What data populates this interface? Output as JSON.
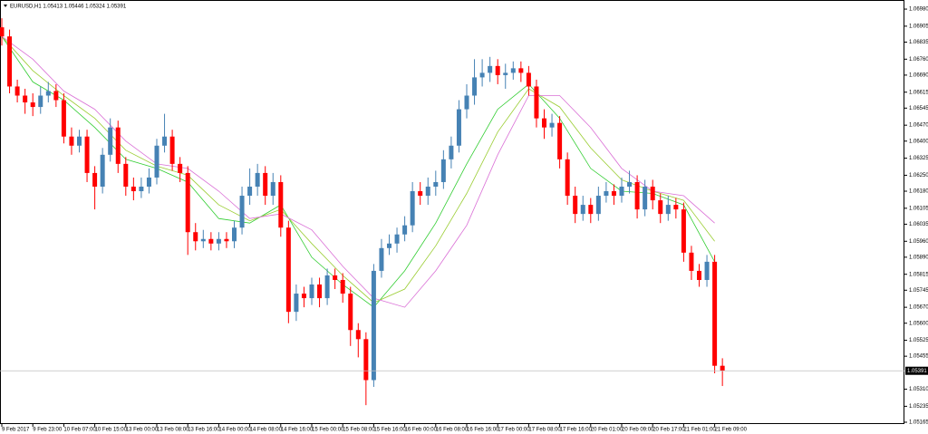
{
  "chart_data": {
    "type": "candlestick",
    "symbol": "EURUSD,H1",
    "categories": [
      "9 Feb 2017",
      null,
      null,
      null,
      "9 Feb 23:00",
      null,
      null,
      null,
      "10 Feb 07:00",
      null,
      null,
      null,
      "10 Feb 15:00",
      null,
      null,
      null,
      "13 Feb 00:00",
      null,
      null,
      null,
      "13 Feb 08:00",
      null,
      null,
      null,
      "13 Feb 16:00",
      null,
      null,
      null,
      "14 Feb 00:00",
      null,
      null,
      null,
      "14 Feb 08:00",
      null,
      null,
      null,
      "14 Feb 16:00",
      null,
      null,
      null,
      "15 Feb 00:00",
      null,
      null,
      null,
      "15 Feb 08:00",
      null,
      null,
      null,
      "15 Feb 16:00",
      null,
      null,
      null,
      "16 Feb 00:00",
      null,
      null,
      null,
      "16 Feb 08:00",
      null,
      null,
      null,
      "16 Feb 16:00",
      null,
      null,
      null,
      "17 Feb 00:00",
      null,
      null,
      null,
      "17 Feb 08:00",
      null,
      null,
      null,
      "17 Feb 16:00",
      null,
      null,
      null,
      "20 Feb 01:00",
      null,
      null,
      null,
      "20 Feb 09:00",
      null,
      null,
      null,
      "20 Feb 17:00",
      null,
      null,
      null,
      "21 Feb 01:00",
      null,
      null,
      null,
      "21 Feb 09:00",
      null
    ],
    "open": [
      1.069,
      1.0686,
      1.0664,
      1.066,
      1.0657,
      1.0655,
      1.066,
      1.0662,
      1.0658,
      1.0642,
      1.0638,
      1.0642,
      1.0626,
      1.062,
      1.0634,
      1.0646,
      1.063,
      1.062,
      1.0618,
      1.062,
      1.0624,
      1.0638,
      1.0642,
      1.063,
      1.0626,
      1.06,
      1.0596,
      1.0597,
      1.0595,
      1.0597,
      1.0596,
      1.0602,
      1.0616,
      1.062,
      1.0626,
      1.0616,
      1.0622,
      1.0602,
      1.0565,
      1.0573,
      1.0571,
      1.0577,
      1.0571,
      1.0581,
      1.0579,
      1.0573,
      1.0557,
      1.0553,
      1.0535,
      1.0583,
      1.0593,
      1.0595,
      1.0599,
      1.0603,
      1.0618,
      1.0616,
      1.062,
      1.0622,
      1.0632,
      1.0638,
      1.0654,
      1.066,
      1.0668,
      1.067,
      1.0673,
      1.0669,
      1.067,
      1.0672,
      1.067,
      1.0664,
      1.065,
      1.0646,
      1.0648,
      1.0632,
      1.0616,
      1.0608,
      1.0612,
      1.0608,
      1.0616,
      1.0618,
      1.0616,
      1.062,
      1.0622,
      1.061,
      1.062,
      1.0614,
      1.0608,
      1.0612,
      1.061,
      1.0591,
      1.0583,
      1.0579,
      1.0587,
      1.05413
    ],
    "high": [
      1.0694,
      1.0689,
      1.0667,
      1.0663,
      1.0661,
      1.0664,
      1.0666,
      1.0665,
      1.0661,
      1.0646,
      1.0645,
      1.0645,
      1.0629,
      1.0637,
      1.065,
      1.0649,
      1.0633,
      1.0624,
      1.0624,
      1.0628,
      1.0641,
      1.0652,
      1.0645,
      1.0633,
      1.0629,
      1.0604,
      1.0601,
      1.06,
      1.06,
      1.06,
      1.0605,
      1.062,
      1.0628,
      1.063,
      1.0629,
      1.0626,
      1.0625,
      1.0605,
      1.0577,
      1.0576,
      1.058,
      1.058,
      1.0584,
      1.0584,
      1.0582,
      1.0576,
      1.056,
      1.0556,
      1.0586,
      1.0597,
      1.0599,
      1.0602,
      1.0607,
      1.0622,
      1.0622,
      1.0624,
      1.0627,
      1.0636,
      1.0642,
      1.0658,
      1.0665,
      1.0676,
      1.0676,
      1.0677,
      1.0676,
      1.0674,
      1.0675,
      1.0675,
      1.0673,
      1.0667,
      1.0654,
      1.0652,
      1.0651,
      1.0635,
      1.062,
      1.0616,
      1.0615,
      1.062,
      1.0622,
      1.0621,
      1.0624,
      1.0627,
      1.0625,
      1.0623,
      1.0623,
      1.0617,
      1.0616,
      1.0615,
      1.0613,
      1.0594,
      1.0586,
      1.059,
      1.059,
      1.05446
    ],
    "low": [
      1.0682,
      1.0661,
      1.0657,
      1.0652,
      1.0651,
      1.0652,
      1.0657,
      1.0655,
      1.0639,
      1.0634,
      1.0635,
      1.0622,
      1.061,
      1.0617,
      1.0631,
      1.0626,
      1.0616,
      1.0614,
      1.0615,
      1.0617,
      1.0621,
      1.0635,
      1.0627,
      1.0622,
      1.059,
      1.0592,
      1.0593,
      1.0592,
      1.0592,
      1.0593,
      1.0593,
      1.0599,
      1.0612,
      1.0616,
      1.0612,
      1.0612,
      1.0598,
      1.056,
      1.0561,
      1.0567,
      1.0568,
      1.0567,
      1.0568,
      1.0575,
      1.0569,
      1.055,
      1.0545,
      1.0524,
      1.0532,
      1.058,
      1.059,
      1.0591,
      1.0596,
      1.06,
      1.0612,
      1.0612,
      1.0616,
      1.0619,
      1.0628,
      1.0635,
      1.065,
      1.0656,
      1.0664,
      1.0666,
      1.0665,
      1.0663,
      1.0667,
      1.0666,
      1.066,
      1.0646,
      1.0641,
      1.0642,
      1.0628,
      1.0612,
      1.0604,
      1.0605,
      1.0604,
      1.0605,
      1.0613,
      1.0612,
      1.0613,
      1.0617,
      1.0606,
      1.0607,
      1.061,
      1.0604,
      1.0605,
      1.0606,
      1.0587,
      1.0579,
      1.0576,
      1.0576,
      1.0538,
      1.05324
    ],
    "close": [
      1.0686,
      1.0664,
      1.066,
      1.0657,
      1.0655,
      1.066,
      1.0662,
      1.0658,
      1.0642,
      1.0638,
      1.0642,
      1.0626,
      1.062,
      1.0634,
      1.0646,
      1.063,
      1.062,
      1.0618,
      1.062,
      1.0624,
      1.0638,
      1.0642,
      1.063,
      1.0626,
      1.06,
      1.0596,
      1.0597,
      1.0595,
      1.0597,
      1.0596,
      1.0602,
      1.0616,
      1.062,
      1.0626,
      1.0616,
      1.0622,
      1.0602,
      1.0565,
      1.0573,
      1.0571,
      1.0577,
      1.0571,
      1.0581,
      1.0579,
      1.0573,
      1.0557,
      1.0553,
      1.0535,
      1.0583,
      1.0593,
      1.0595,
      1.0599,
      1.0603,
      1.0618,
      1.0616,
      1.062,
      1.0622,
      1.0632,
      1.0638,
      1.0654,
      1.066,
      1.0668,
      1.067,
      1.0673,
      1.0669,
      1.067,
      1.0672,
      1.067,
      1.0664,
      1.065,
      1.0646,
      1.0648,
      1.0632,
      1.0616,
      1.0608,
      1.0612,
      1.0608,
      1.0616,
      1.0618,
      1.0616,
      1.062,
      1.0622,
      1.061,
      1.062,
      1.0614,
      1.0608,
      1.0612,
      1.061,
      1.0591,
      1.0583,
      1.0579,
      1.0587,
      1.05413,
      1.05391
    ],
    "up_color": "#4682b4",
    "down_color": "#ff0000",
    "ribbons": [
      {
        "color": "#32cd32",
        "values": [
          1.0686,
          1.0666,
          1.0658,
          1.0646,
          1.0632,
          1.0628,
          1.0622,
          1.0606,
          1.0604,
          1.0612,
          1.0589,
          1.0577,
          1.0567,
          1.0583,
          1.0604,
          1.063,
          1.0654,
          1.0665,
          1.065,
          1.0628,
          1.0618,
          1.0617,
          1.0612,
          1.0587
        ]
      },
      {
        "color": "#9acd32",
        "values": [
          1.0686,
          1.0671,
          1.066,
          1.065,
          1.0636,
          1.0629,
          1.0625,
          1.0612,
          1.0605,
          1.061,
          1.0595,
          1.0581,
          1.0569,
          1.0575,
          1.0594,
          1.0617,
          1.0644,
          1.0663,
          1.0655,
          1.0637,
          1.0623,
          1.0618,
          1.0614,
          1.0596
        ]
      },
      {
        "color": "#da70d6",
        "values": [
          1.0686,
          1.0676,
          1.0662,
          1.0654,
          1.064,
          1.063,
          1.0628,
          1.0618,
          1.0606,
          1.0608,
          1.0601,
          1.0585,
          1.0571,
          1.0567,
          1.0583,
          1.0603,
          1.0634,
          1.066,
          1.066,
          1.0646,
          1.0628,
          1.0618,
          1.0616,
          1.0604
        ]
      }
    ],
    "ylim": [
      1.05157,
      1.0702
    ],
    "yticks": [
      {
        "value": 1.0698,
        "label": "1.06980"
      },
      1.06905,
      1.06835,
      {
        "value": 1.0676,
        "label": "1.06760"
      },
      {
        "value": 1.0669,
        "label": "1.06690"
      },
      1.06615,
      1.06545,
      {
        "value": 1.0647,
        "label": "1.06470"
      },
      {
        "value": 1.064,
        "label": "1.06400"
      },
      1.06325,
      {
        "value": 1.0625,
        "label": "1.06250"
      },
      {
        "value": 1.0618,
        "label": "1.06180"
      },
      1.06105,
      1.06035,
      {
        "value": 1.0596,
        "label": "1.05960"
      },
      {
        "value": 1.0589,
        "label": "1.05890"
      },
      1.05815,
      1.05745,
      {
        "value": 1.0567,
        "label": "1.05670"
      },
      {
        "value": 1.056,
        "label": "1.05600"
      },
      1.05525,
      1.05455,
      {
        "value": 1.0531,
        "label": "1.05310"
      },
      1.05235,
      1.05165
    ]
  }
}
